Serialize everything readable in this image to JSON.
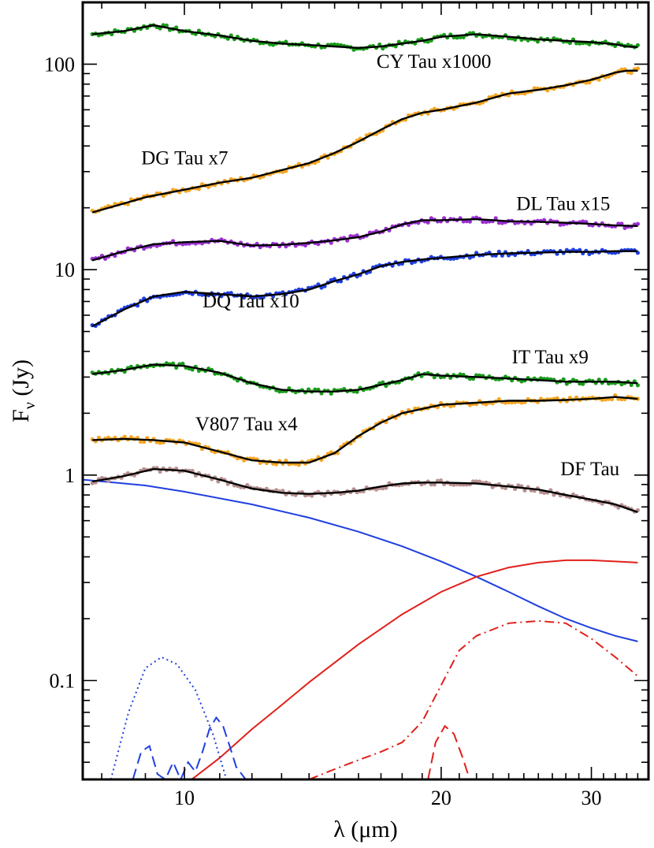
{
  "chart_data": {
    "type": "line",
    "title": "",
    "xlabel": "λ (μm)",
    "ylabel": "Fν (Jy)",
    "xscale": "log",
    "yscale": "log",
    "xlim": [
      7.6,
      35
    ],
    "ylim": [
      0.033,
      200
    ],
    "xticks": [
      {
        "value": 10,
        "label": "10"
      },
      {
        "value": 20,
        "label": "20"
      },
      {
        "value": 30,
        "label": "30"
      }
    ],
    "yticks": [
      {
        "value": 0.1,
        "label": "0.1"
      },
      {
        "value": 1,
        "label": "1"
      },
      {
        "value": 10,
        "label": "10"
      },
      {
        "value": 100,
        "label": "100"
      }
    ],
    "series": [
      {
        "name": "CY Tau x1000",
        "color": "#1a9a1a",
        "label": "CY Tau x1000",
        "label_pos": [
          16.8,
          96
        ],
        "x": [
          7.8,
          8.5,
          9.2,
          10,
          11,
          12,
          13,
          14,
          15,
          16,
          17,
          18,
          19,
          20,
          22,
          24,
          26,
          28,
          30,
          32,
          33,
          34
        ],
        "y": [
          140,
          145,
          155,
          145,
          138,
          130,
          126,
          124,
          122,
          120,
          122,
          126,
          130,
          136,
          140,
          136,
          132,
          130,
          128,
          125,
          122,
          121
        ]
      },
      {
        "name": "DG Tau x7",
        "color": "#f5a623",
        "label": "DG Tau x7",
        "label_pos": [
          8.9,
          32.5
        ],
        "x": [
          7.8,
          8.5,
          9,
          10,
          11,
          12,
          13,
          14,
          15,
          16,
          17,
          18,
          19,
          20,
          22,
          24,
          26,
          28,
          30,
          32,
          33,
          34
        ],
        "y": [
          19,
          21,
          22.5,
          24.5,
          26.5,
          28,
          30.5,
          33,
          37,
          42,
          48,
          54,
          58,
          60,
          65,
          72,
          75,
          79,
          84,
          91,
          93,
          93
        ]
      },
      {
        "name": "DL Tau x15",
        "color": "#9b30d0",
        "label": "DL Tau x15",
        "label_pos": [
          24.5,
          19.5
        ],
        "x": [
          7.8,
          8.5,
          9.2,
          10,
          11,
          12,
          13,
          14,
          15,
          16,
          17,
          18,
          19,
          20,
          22,
          24,
          26,
          28,
          30,
          32,
          34
        ],
        "y": [
          11.1,
          12.3,
          13.3,
          13.6,
          13.8,
          13.1,
          13.2,
          13.5,
          13.9,
          14.4,
          15.3,
          16.6,
          17.4,
          17.4,
          17.6,
          17.2,
          17.1,
          16.9,
          16.7,
          16.4,
          16.3
        ]
      },
      {
        "name": "DQ Tau x10",
        "color": "#1f3fe0",
        "label": "DQ Tau x10",
        "label_pos": [
          10.5,
          6.55
        ],
        "x": [
          7.8,
          8.5,
          9.2,
          10,
          11,
          12,
          13,
          14,
          15,
          16,
          17,
          18,
          19,
          20,
          22,
          24,
          26,
          28,
          30,
          32,
          34
        ],
        "y": [
          5.3,
          6.4,
          7.4,
          7.8,
          7.6,
          7.4,
          7.6,
          8.0,
          8.8,
          9.5,
          10.4,
          10.9,
          11.2,
          11.4,
          11.8,
          12.0,
          12.1,
          12.2,
          12.2,
          12.3,
          12.3
        ]
      },
      {
        "name": "IT Tau x9",
        "color": "#1a9a1a",
        "label": "IT Tau x9",
        "label_pos": [
          24.2,
          3.5
        ],
        "x": [
          7.8,
          8.5,
          9.2,
          10,
          11,
          12,
          13,
          14,
          15,
          16,
          17,
          18,
          19,
          20,
          22,
          24,
          26,
          28,
          30,
          32,
          34
        ],
        "y": [
          3.1,
          3.25,
          3.45,
          3.4,
          3.15,
          2.8,
          2.6,
          2.55,
          2.55,
          2.6,
          2.75,
          2.9,
          3.1,
          3.05,
          3.0,
          2.95,
          2.9,
          2.85,
          2.85,
          2.85,
          2.8
        ]
      },
      {
        "name": "V807 Tau x4",
        "color": "#f5a623",
        "label": "V807 Tau x4",
        "label_pos": [
          10.3,
          1.65
        ],
        "x": [
          7.8,
          8.5,
          9.2,
          10,
          11,
          12,
          13,
          14,
          15,
          16,
          17,
          18,
          19,
          20,
          22,
          24,
          26,
          28,
          30,
          32,
          34
        ],
        "y": [
          1.48,
          1.5,
          1.48,
          1.44,
          1.3,
          1.18,
          1.15,
          1.15,
          1.28,
          1.55,
          1.8,
          2.0,
          2.1,
          2.2,
          2.25,
          2.3,
          2.3,
          2.32,
          2.35,
          2.4,
          2.35
        ]
      },
      {
        "name": "DF Tau",
        "color": "#b89090",
        "label": "DF Tau",
        "label_pos": [
          27.6,
          1.0
        ],
        "x": [
          7.8,
          8.5,
          9.2,
          10,
          11,
          12,
          13,
          14,
          15,
          16,
          17,
          18,
          19,
          20,
          22,
          24,
          26,
          28,
          30,
          32,
          34
        ],
        "y": [
          0.93,
          0.99,
          1.07,
          1.05,
          0.95,
          0.86,
          0.82,
          0.81,
          0.82,
          0.84,
          0.88,
          0.91,
          0.92,
          0.92,
          0.91,
          0.88,
          0.85,
          0.8,
          0.76,
          0.72,
          0.66
        ]
      },
      {
        "name": "blue solid component",
        "color": "#1f3fe0",
        "style": "solid",
        "x": [
          7.6,
          9,
          10,
          12,
          14,
          16,
          18,
          20,
          22,
          24,
          26,
          28,
          30,
          32,
          34
        ],
        "y": [
          0.95,
          0.89,
          0.83,
          0.72,
          0.62,
          0.53,
          0.45,
          0.38,
          0.32,
          0.27,
          0.23,
          0.2,
          0.18,
          0.165,
          0.155
        ]
      },
      {
        "name": "red solid component",
        "color": "#e0201a",
        "style": "solid",
        "x": [
          10.2,
          11,
          12,
          13,
          14,
          16,
          18,
          20,
          22,
          24,
          26,
          28,
          30,
          32,
          34
        ],
        "y": [
          0.033,
          0.042,
          0.058,
          0.076,
          0.098,
          0.15,
          0.21,
          0.27,
          0.32,
          0.355,
          0.375,
          0.385,
          0.385,
          0.38,
          0.375
        ]
      },
      {
        "name": "red dash-dot component",
        "color": "#e0201a",
        "style": "dashdot",
        "x": [
          14,
          15,
          16,
          17,
          18,
          19,
          20,
          21,
          22,
          24,
          26,
          28,
          30,
          32,
          34
        ],
        "y": [
          0.033,
          0.037,
          0.041,
          0.045,
          0.05,
          0.063,
          0.095,
          0.14,
          0.165,
          0.19,
          0.195,
          0.19,
          0.16,
          0.13,
          0.105
        ]
      },
      {
        "name": "red dashed component",
        "color": "#e0201a",
        "style": "dashed",
        "x": [
          19.3,
          19.7,
          20.2,
          20.7,
          21.2,
          21.6
        ],
        "y": [
          0.033,
          0.05,
          0.06,
          0.055,
          0.042,
          0.033
        ]
      },
      {
        "name": "blue dotted component",
        "color": "#1f3fe0",
        "style": "dotted",
        "x": [
          8.2,
          8.6,
          9.0,
          9.4,
          9.8,
          10.3,
          10.8,
          11.2
        ],
        "y": [
          0.033,
          0.07,
          0.115,
          0.13,
          0.12,
          0.09,
          0.055,
          0.033
        ]
      },
      {
        "name": "blue dashed component",
        "color": "#1f3fe0",
        "style": "dashed",
        "x": [
          8.7,
          8.9,
          9.1,
          9.3,
          9.5,
          9.7,
          9.9,
          10.1,
          10.3,
          10.5,
          10.7,
          10.9,
          11.1,
          11.3,
          11.5,
          11.8
        ],
        "y": [
          0.033,
          0.045,
          0.048,
          0.035,
          0.033,
          0.04,
          0.033,
          0.04,
          0.036,
          0.045,
          0.058,
          0.066,
          0.06,
          0.048,
          0.038,
          0.033
        ]
      }
    ]
  }
}
